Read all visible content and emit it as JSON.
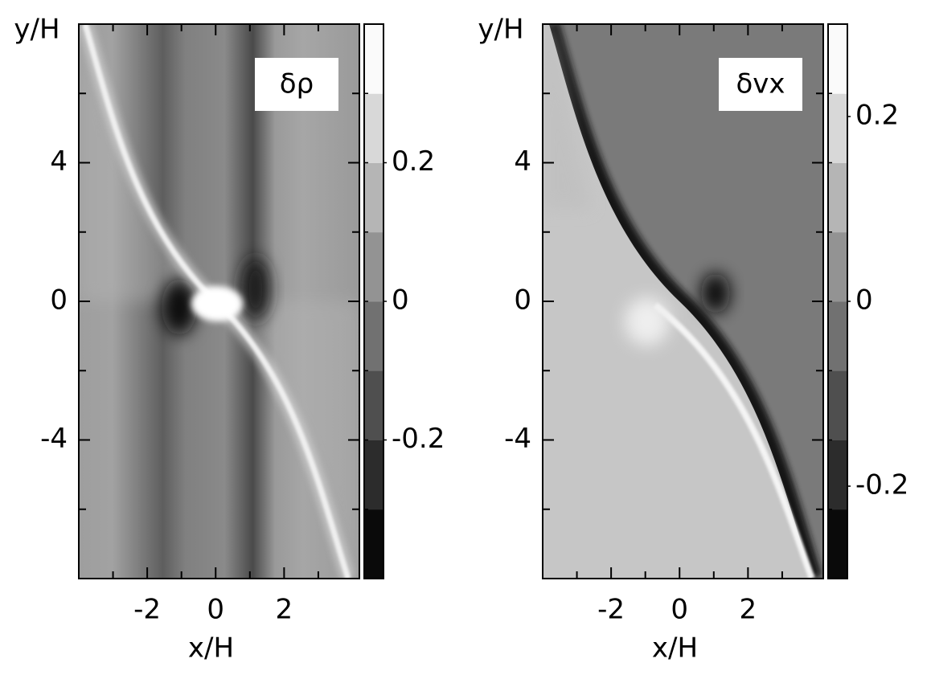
{
  "chart_data": [
    {
      "type": "heatmap",
      "title": "δρ",
      "xlabel": "x/H",
      "ylabel": "y/H",
      "xlim": [
        -4,
        4.2
      ],
      "ylim": [
        -8,
        8
      ],
      "xticks": [
        -2,
        0,
        2
      ],
      "xminorticks": [
        -3,
        -1,
        1,
        3
      ],
      "yticks": [
        -4,
        0,
        4
      ],
      "yminorticks": [
        -6,
        -2,
        2,
        6
      ],
      "colorbar": {
        "lim": [
          -0.4,
          0.4
        ],
        "ticks": [
          -0.2,
          0,
          0.2
        ]
      }
    },
    {
      "type": "heatmap",
      "title": "δvx",
      "xlabel": "x/H",
      "ylabel": "y/H",
      "xlim": [
        -4,
        4.2
      ],
      "ylim": [
        -8,
        8
      ],
      "xticks": [
        -2,
        0,
        2
      ],
      "xminorticks": [
        -3,
        -1,
        1,
        3
      ],
      "yticks": [
        -4,
        0,
        4
      ],
      "yminorticks": [
        -6,
        -2,
        2,
        6
      ],
      "colorbar": {
        "lim": [
          -0.3,
          0.3
        ],
        "ticks": [
          -0.2,
          0,
          0.2
        ]
      }
    }
  ]
}
